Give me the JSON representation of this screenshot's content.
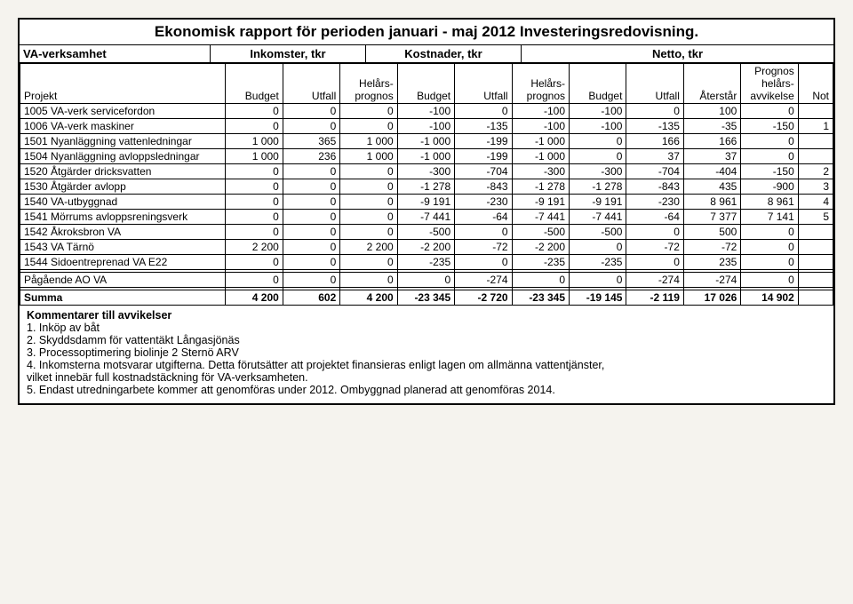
{
  "title": "Ekonomisk rapport för perioden januari - maj 2012 Investeringsredovisning.",
  "section_headers": {
    "va": "VA-verksamhet",
    "inkomster": "Inkomster, tkr",
    "kostnader": "Kostnader, tkr",
    "netto": "Netto, tkr"
  },
  "col_headers": {
    "projekt": "Projekt",
    "budget": "Budget",
    "utfall": "Utfall",
    "helars_prognos": "Helårs-\nprognos",
    "aterstar": "Återstår",
    "prognos_helars_avvikelse": "Prognos\nhelårs-\navvikelse",
    "not": "Not"
  },
  "rows": [
    {
      "label": "1005 VA-verk servicefordon",
      "v": [
        "0",
        "0",
        "0",
        "-100",
        "0",
        "-100",
        "-100",
        "0",
        "100",
        "0",
        ""
      ]
    },
    {
      "label": "1006 VA-verk maskiner",
      "v": [
        "0",
        "0",
        "0",
        "-100",
        "-135",
        "-100",
        "-100",
        "-135",
        "-35",
        "-150",
        "1"
      ]
    },
    {
      "label": "1501 Nyanläggning vattenledningar",
      "v": [
        "1 000",
        "365",
        "1 000",
        "-1 000",
        "-199",
        "-1 000",
        "0",
        "166",
        "166",
        "0",
        ""
      ]
    },
    {
      "label": "1504 Nyanläggning avloppsledningar",
      "v": [
        "1 000",
        "236",
        "1 000",
        "-1 000",
        "-199",
        "-1 000",
        "0",
        "37",
        "37",
        "0",
        ""
      ]
    },
    {
      "label": "1520 Åtgärder dricksvatten",
      "v": [
        "0",
        "0",
        "0",
        "-300",
        "-704",
        "-300",
        "-300",
        "-704",
        "-404",
        "-150",
        "2"
      ]
    },
    {
      "label": "1530 Åtgärder avlopp",
      "v": [
        "0",
        "0",
        "0",
        "-1 278",
        "-843",
        "-1 278",
        "-1 278",
        "-843",
        "435",
        "-900",
        "3"
      ]
    },
    {
      "label": "1540 VA-utbyggnad",
      "v": [
        "0",
        "0",
        "0",
        "-9 191",
        "-230",
        "-9 191",
        "-9 191",
        "-230",
        "8 961",
        "8 961",
        "4"
      ]
    },
    {
      "label": "1541 Mörrums avloppsreningsverk",
      "v": [
        "0",
        "0",
        "0",
        "-7 441",
        "-64",
        "-7 441",
        "-7 441",
        "-64",
        "7 377",
        "7 141",
        "5"
      ]
    },
    {
      "label": "1542 Åkroksbron VA",
      "v": [
        "0",
        "0",
        "0",
        "-500",
        "0",
        "-500",
        "-500",
        "0",
        "500",
        "0",
        ""
      ]
    },
    {
      "label": "1543 VA Tärnö",
      "v": [
        "2 200",
        "0",
        "2 200",
        "-2 200",
        "-72",
        "-2 200",
        "0",
        "-72",
        "-72",
        "0",
        ""
      ]
    },
    {
      "label": "1544 Sidoentreprenad VA E22",
      "v": [
        "0",
        "0",
        "0",
        "-235",
        "0",
        "-235",
        "-235",
        "0",
        "235",
        "0",
        ""
      ]
    }
  ],
  "pagaende": {
    "label": "Pågående AO VA",
    "v": [
      "0",
      "0",
      "0",
      "0",
      "-274",
      "0",
      "0",
      "-274",
      "-274",
      "0",
      ""
    ]
  },
  "summa": {
    "label": "Summa",
    "v": [
      "4 200",
      "602",
      "4 200",
      "-23 345",
      "-2 720",
      "-23 345",
      "-19 145",
      "-2 119",
      "17 026",
      "14 902",
      ""
    ]
  },
  "comments": {
    "header": "Kommentarer till avvikelser",
    "lines": [
      "1. Inköp av båt",
      "2. Skyddsdamm för vattentäkt Långasjönäs",
      "3. Processoptimering biolinje 2 Sternö ARV",
      "4. Inkomsterna motsvarar utgifterna. Detta förutsätter att projektet finansieras enligt lagen om allmänna vattentjänster,",
      "    vilket innebär full kostnadstäckning för VA-verksamheten.",
      "5. Endast utredningarbete kommer att genomföras under 2012. Ombyggnad planerad att genomföras 2014."
    ]
  },
  "style": {
    "background": "#f5f3ee",
    "border_color": "#000000",
    "font_size_title": 17,
    "font_size_body": 12
  }
}
